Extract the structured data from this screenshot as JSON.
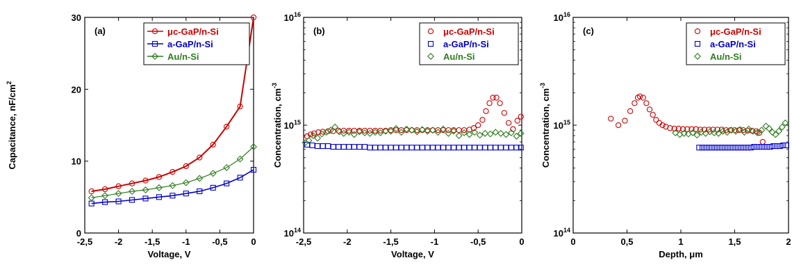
{
  "chart_data": [
    {
      "type": "line",
      "panel_label": "(a)",
      "xlabel": "Voltage, V",
      "ylabel": "Capacitance, nF/cm",
      "ylabel_sup": "2",
      "xlim": [
        -2.5,
        0
      ],
      "ylim": [
        0,
        30
      ],
      "log_y": false,
      "x_ticks": [
        -2.5,
        -2,
        -1.5,
        -1,
        -0.5,
        0
      ],
      "x_tick_labels": [
        "-2,5",
        "-2",
        "-1,5",
        "-1",
        "-0,5",
        "0"
      ],
      "y_ticks": [
        0,
        10,
        20,
        30
      ],
      "y_tick_labels": [
        "0",
        "10",
        "20",
        "30"
      ],
      "legend_position": "top-right",
      "series": [
        {
          "name": "μc-GaP/n-Si",
          "color": "#cc0000",
          "marker": "circle",
          "line": true,
          "x": [
            -2.4,
            -2.2,
            -2.0,
            -1.8,
            -1.6,
            -1.4,
            -1.2,
            -1.0,
            -0.8,
            -0.6,
            -0.4,
            -0.2,
            0.0
          ],
          "y": [
            5.8,
            6.1,
            6.5,
            6.9,
            7.3,
            7.8,
            8.5,
            9.3,
            10.5,
            12.3,
            14.8,
            17.6,
            30.0
          ]
        },
        {
          "name": "a-GaP/n-Si",
          "color": "#0000cc",
          "marker": "square",
          "line": true,
          "x": [
            -2.4,
            -2.2,
            -2.0,
            -1.8,
            -1.6,
            -1.4,
            -1.2,
            -1.0,
            -0.8,
            -0.6,
            -0.4,
            -0.2,
            0.0
          ],
          "y": [
            4.1,
            4.3,
            4.4,
            4.6,
            4.8,
            5.0,
            5.2,
            5.5,
            5.8,
            6.3,
            6.9,
            7.7,
            8.8
          ]
        },
        {
          "name": "Au/n-Si",
          "color": "#2e7d1e",
          "marker": "diamond",
          "line": true,
          "x": [
            -2.4,
            -2.2,
            -2.0,
            -1.8,
            -1.6,
            -1.4,
            -1.2,
            -1.0,
            -0.8,
            -0.6,
            -0.4,
            -0.2,
            0.0
          ],
          "y": [
            4.9,
            5.2,
            5.5,
            5.8,
            6.0,
            6.3,
            6.6,
            7.0,
            7.6,
            8.3,
            9.1,
            10.3,
            12.0
          ]
        }
      ]
    },
    {
      "type": "scatter",
      "panel_label": "(b)",
      "xlabel": "Voltage, V",
      "ylabel": "Concentration, cm",
      "ylabel_sup": "-3",
      "xlim": [
        -2.5,
        0
      ],
      "ylim": [
        100000000000000.0,
        1e+16
      ],
      "log_y": true,
      "x_ticks": [
        -2.5,
        -2,
        -1.5,
        -1,
        -0.5,
        0
      ],
      "x_tick_labels": [
        "-2,5",
        "-2",
        "-1,5",
        "-1",
        "-0,5",
        "0"
      ],
      "y_ticks": [
        100000000000000.0,
        1000000000000000.0,
        1e+16
      ],
      "y_tick_base": "10",
      "y_tick_exps": [
        "14",
        "15",
        "16"
      ],
      "legend_position": "top-right",
      "series": [
        {
          "name": "μc-GaP/n-Si",
          "color": "#cc0000",
          "marker": "circle",
          "line": false,
          "x": [
            -2.46,
            -2.42,
            -2.38,
            -2.33,
            -2.28,
            -2.22,
            -2.16,
            -2.1,
            -2.04,
            -1.98,
            -1.92,
            -1.86,
            -1.8,
            -1.74,
            -1.68,
            -1.62,
            -1.56,
            -1.5,
            -1.44,
            -1.38,
            -1.32,
            -1.26,
            -1.2,
            -1.14,
            -1.08,
            -1.02,
            -0.96,
            -0.9,
            -0.84,
            -0.78,
            -0.72,
            -0.66,
            -0.6,
            -0.55,
            -0.5,
            -0.45,
            -0.41,
            -0.37,
            -0.33,
            -0.29,
            -0.25,
            -0.2,
            -0.15,
            -0.1,
            -0.05,
            -0.01
          ],
          "y": [
            790000000000000.0,
            820000000000000.0,
            840000000000000.0,
            860000000000000.0,
            870000000000000.0,
            880000000000000.0,
            880000000000000.0,
            890000000000000.0,
            890000000000000.0,
            890000000000000.0,
            890000000000000.0,
            890000000000000.0,
            890000000000000.0,
            890000000000000.0,
            890000000000000.0,
            890000000000000.0,
            890000000000000.0,
            900000000000000.0,
            900000000000000.0,
            900000000000000.0,
            900000000000000.0,
            900000000000000.0,
            900000000000000.0,
            900000000000000.0,
            900000000000000.0,
            900000000000000.0,
            900000000000000.0,
            900000000000000.0,
            900000000000000.0,
            900000000000000.0,
            900000000000000.0,
            900000000000000.0,
            910000000000000.0,
            940000000000000.0,
            1000000000000000.0,
            1120000000000000.0,
            1350000000000000.0,
            1600000000000000.0,
            1800000000000000.0,
            1800000000000000.0,
            1600000000000000.0,
            1300000000000000.0,
            1050000000000000.0,
            920000000000000.0,
            1100000000000000.0,
            1200000000000000.0
          ]
        },
        {
          "name": "a-GaP/n-Si",
          "color": "#0000cc",
          "marker": "square",
          "line": false,
          "x": [
            -2.46,
            -2.4,
            -2.34,
            -2.28,
            -2.22,
            -2.16,
            -2.1,
            -2.04,
            -1.98,
            -1.92,
            -1.86,
            -1.8,
            -1.74,
            -1.68,
            -1.62,
            -1.56,
            -1.5,
            -1.44,
            -1.38,
            -1.32,
            -1.26,
            -1.2,
            -1.14,
            -1.08,
            -1.02,
            -0.96,
            -0.9,
            -0.84,
            -0.78,
            -0.72,
            -0.66,
            -0.6,
            -0.54,
            -0.48,
            -0.42,
            -0.36,
            -0.3,
            -0.24,
            -0.18,
            -0.12,
            -0.06,
            -0.01
          ],
          "y": [
            660000000000000.0,
            650000000000000.0,
            640000000000000.0,
            640000000000000.0,
            640000000000000.0,
            630000000000000.0,
            630000000000000.0,
            630000000000000.0,
            630000000000000.0,
            630000000000000.0,
            630000000000000.0,
            630000000000000.0,
            620000000000000.0,
            620000000000000.0,
            620000000000000.0,
            620000000000000.0,
            620000000000000.0,
            620000000000000.0,
            620000000000000.0,
            620000000000000.0,
            620000000000000.0,
            620000000000000.0,
            620000000000000.0,
            620000000000000.0,
            620000000000000.0,
            620000000000000.0,
            620000000000000.0,
            620000000000000.0,
            620000000000000.0,
            620000000000000.0,
            620000000000000.0,
            620000000000000.0,
            620000000000000.0,
            620000000000000.0,
            620000000000000.0,
            620000000000000.0,
            620000000000000.0,
            620000000000000.0,
            620000000000000.0,
            620000000000000.0,
            620000000000000.0,
            620000000000000.0
          ]
        },
        {
          "name": "Au/n-Si",
          "color": "#2e7d1e",
          "marker": "diamond",
          "line": false,
          "x": [
            -2.48,
            -2.44,
            -2.39,
            -2.34,
            -2.29,
            -2.24,
            -2.19,
            -2.14,
            -2.09,
            -2.04,
            -1.98,
            -1.92,
            -1.86,
            -1.8,
            -1.74,
            -1.68,
            -1.62,
            -1.56,
            -1.5,
            -1.44,
            -1.38,
            -1.32,
            -1.26,
            -1.2,
            -1.14,
            -1.08,
            -1.02,
            -0.96,
            -0.9,
            -0.84,
            -0.78,
            -0.72,
            -0.66,
            -0.6,
            -0.54,
            -0.48,
            -0.42,
            -0.36,
            -0.3,
            -0.24,
            -0.18,
            -0.12,
            -0.06,
            -0.01
          ],
          "y": [
            690000000000000.0,
            720000000000000.0,
            800000000000000.0,
            760000000000000.0,
            830000000000000.0,
            860000000000000.0,
            900000000000000.0,
            960000000000000.0,
            870000000000000.0,
            840000000000000.0,
            860000000000000.0,
            820000000000000.0,
            870000000000000.0,
            850000000000000.0,
            840000000000000.0,
            860000000000000.0,
            850000000000000.0,
            880000000000000.0,
            880000000000000.0,
            930000000000000.0,
            860000000000000.0,
            920000000000000.0,
            900000000000000.0,
            870000000000000.0,
            910000000000000.0,
            880000000000000.0,
            900000000000000.0,
            860000000000000.0,
            920000000000000.0,
            840000000000000.0,
            880000000000000.0,
            800000000000000.0,
            850000000000000.0,
            820000000000000.0,
            860000000000000.0,
            810000000000000.0,
            840000000000000.0,
            830000000000000.0,
            860000000000000.0,
            840000000000000.0,
            820000000000000.0,
            850000000000000.0,
            790000000000000.0,
            840000000000000.0
          ]
        }
      ]
    },
    {
      "type": "scatter",
      "panel_label": "(c)",
      "xlabel": "Depth, μm",
      "ylabel": "Concentration, cm",
      "ylabel_sup": "-3",
      "xlim": [
        0,
        2
      ],
      "ylim": [
        100000000000000.0,
        1e+16
      ],
      "log_y": true,
      "x_ticks": [
        0,
        0.5,
        1,
        1.5,
        2
      ],
      "x_tick_labels": [
        "0",
        "0,5",
        "1",
        "1,5",
        "2"
      ],
      "y_ticks": [
        100000000000000.0,
        1000000000000000.0,
        1e+16
      ],
      "y_tick_base": "10",
      "y_tick_exps": [
        "14",
        "15",
        "16"
      ],
      "legend_position": "top-right",
      "series": [
        {
          "name": "μc-GaP/n-Si",
          "color": "#cc0000",
          "marker": "circle",
          "line": false,
          "x": [
            0.35,
            0.42,
            0.48,
            0.53,
            0.57,
            0.6,
            0.62,
            0.65,
            0.68,
            0.71,
            0.74,
            0.77,
            0.8,
            0.83,
            0.86,
            0.9,
            0.94,
            0.98,
            1.02,
            1.06,
            1.1,
            1.14,
            1.18,
            1.22,
            1.26,
            1.3,
            1.34,
            1.38,
            1.42,
            1.46,
            1.5,
            1.54,
            1.58,
            1.62,
            1.66,
            1.7,
            1.73,
            1.76
          ],
          "y": [
            1150000000000000.0,
            1000000000000000.0,
            1100000000000000.0,
            1350000000000000.0,
            1600000000000000.0,
            1800000000000000.0,
            1850000000000000.0,
            1800000000000000.0,
            1600000000000000.0,
            1400000000000000.0,
            1250000000000000.0,
            1120000000000000.0,
            1050000000000000.0,
            1000000000000000.0,
            970000000000000.0,
            940000000000000.0,
            930000000000000.0,
            930000000000000.0,
            920000000000000.0,
            920000000000000.0,
            920000000000000.0,
            920000000000000.0,
            910000000000000.0,
            910000000000000.0,
            910000000000000.0,
            910000000000000.0,
            910000000000000.0,
            910000000000000.0,
            900000000000000.0,
            900000000000000.0,
            900000000000000.0,
            900000000000000.0,
            900000000000000.0,
            890000000000000.0,
            890000000000000.0,
            880000000000000.0,
            850000000000000.0,
            700000000000000.0
          ]
        },
        {
          "name": "a-GaP/n-Si",
          "color": "#0000cc",
          "marker": "square",
          "line": false,
          "x": [
            1.17,
            1.2,
            1.23,
            1.26,
            1.29,
            1.32,
            1.35,
            1.38,
            1.41,
            1.44,
            1.47,
            1.5,
            1.53,
            1.56,
            1.59,
            1.62,
            1.65,
            1.68,
            1.71,
            1.74,
            1.77,
            1.8,
            1.83,
            1.86,
            1.89,
            1.92,
            1.95,
            1.98
          ],
          "y": [
            620000000000000.0,
            620000000000000.0,
            620000000000000.0,
            620000000000000.0,
            620000000000000.0,
            620000000000000.0,
            620000000000000.0,
            620000000000000.0,
            620000000000000.0,
            620000000000000.0,
            620000000000000.0,
            620000000000000.0,
            620000000000000.0,
            620000000000000.0,
            620000000000000.0,
            620000000000000.0,
            620000000000000.0,
            630000000000000.0,
            630000000000000.0,
            630000000000000.0,
            630000000000000.0,
            630000000000000.0,
            630000000000000.0,
            640000000000000.0,
            640000000000000.0,
            640000000000000.0,
            650000000000000.0,
            650000000000000.0
          ]
        },
        {
          "name": "Au/n-Si",
          "color": "#2e7d1e",
          "marker": "diamond",
          "line": false,
          "x": [
            0.95,
            0.99,
            1.03,
            1.07,
            1.11,
            1.15,
            1.19,
            1.23,
            1.27,
            1.31,
            1.35,
            1.39,
            1.43,
            1.47,
            1.51,
            1.55,
            1.59,
            1.63,
            1.67,
            1.71,
            1.75,
            1.79,
            1.82,
            1.85,
            1.88,
            1.91,
            1.94,
            1.97
          ],
          "y": [
            850000000000000.0,
            820000000000000.0,
            840000000000000.0,
            830000000000000.0,
            850000000000000.0,
            810000000000000.0,
            860000000000000.0,
            840000000000000.0,
            870000000000000.0,
            850000000000000.0,
            840000000000000.0,
            880000000000000.0,
            860000000000000.0,
            900000000000000.0,
            880000000000000.0,
            910000000000000.0,
            860000000000000.0,
            920000000000000.0,
            880000000000000.0,
            850000000000000.0,
            900000000000000.0,
            980000000000000.0,
            930000000000000.0,
            860000000000000.0,
            820000000000000.0,
            880000000000000.0,
            960000000000000.0,
            1050000000000000.0
          ]
        }
      ]
    }
  ]
}
